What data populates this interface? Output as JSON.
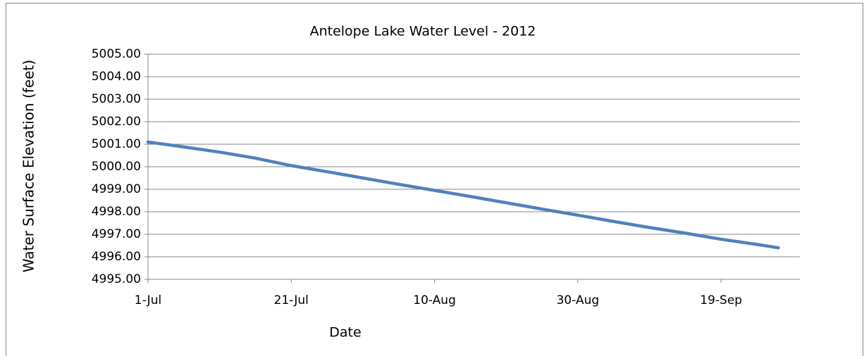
{
  "chart_data": {
    "type": "line",
    "title": "Antelope Lake Water Level - 2012",
    "x_label": "Date",
    "y_label": "Water Surface Elevation (feet)",
    "x": [
      "1-Jul",
      "6-Jul",
      "11-Jul",
      "16-Jul",
      "21-Jul",
      "26-Jul",
      "31-Jul",
      "5-Aug",
      "10-Aug",
      "15-Aug",
      "20-Aug",
      "25-Aug",
      "30-Aug",
      "4-Sep",
      "9-Sep",
      "14-Sep",
      "19-Sep",
      "24-Sep",
      "27-Sep"
    ],
    "values": [
      5001.1,
      5000.88,
      5000.65,
      5000.38,
      5000.05,
      4999.78,
      4999.5,
      4999.22,
      4998.95,
      4998.68,
      4998.4,
      4998.12,
      4997.85,
      4997.57,
      4997.3,
      4997.05,
      4996.78,
      4996.55,
      4996.4
    ],
    "color": "#4f81bd",
    "xlim": [
      "1-Jul",
      "30-Sep"
    ],
    "xticks": [
      "1-Jul",
      "21-Jul",
      "10-Aug",
      "30-Aug",
      "19-Sep"
    ],
    "ylim": [
      4995,
      5005
    ],
    "yticks": [
      {
        "value": 4995,
        "label": "4995.00"
      },
      {
        "value": 4996,
        "label": "4996.00"
      },
      {
        "value": 4997,
        "label": "4997.00"
      },
      {
        "value": 4998,
        "label": "4998.00"
      },
      {
        "value": 4999,
        "label": "4999.00"
      },
      {
        "value": 5000,
        "label": "5000.00"
      },
      {
        "value": 5001,
        "label": "5001.00"
      },
      {
        "value": 5002,
        "label": "5002.00"
      },
      {
        "value": 5003,
        "label": "5003.00"
      },
      {
        "value": 5004,
        "label": "5004.00"
      },
      {
        "value": 5005,
        "label": "5005.00"
      }
    ],
    "grid": true
  }
}
